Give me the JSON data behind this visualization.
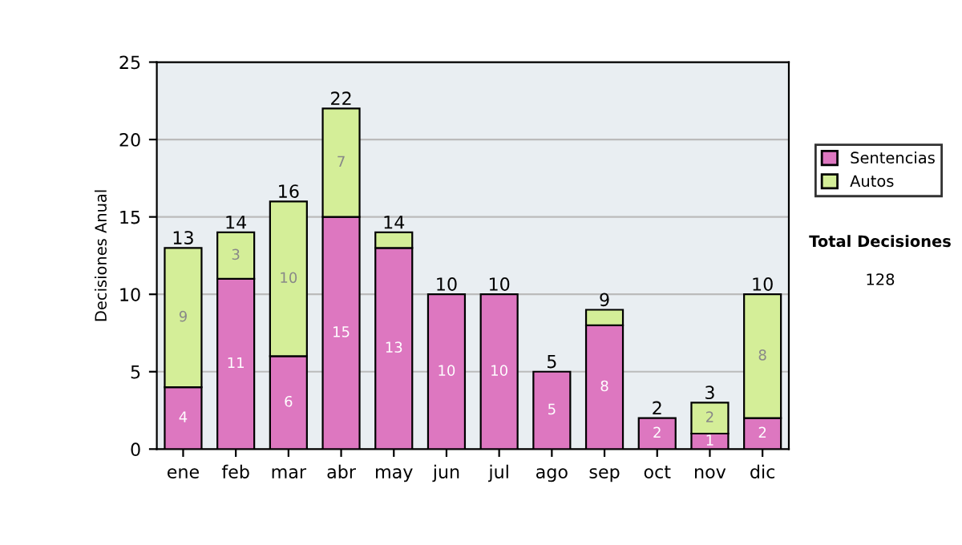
{
  "chart_data": {
    "type": "bar",
    "stacked": true,
    "ylabel": "Decisiones Anual",
    "categories": [
      "ene",
      "feb",
      "mar",
      "abr",
      "may",
      "jun",
      "jul",
      "ago",
      "sep",
      "oct",
      "nov",
      "dic"
    ],
    "series": [
      {
        "name": "Sentencias",
        "color": "#dd77c0",
        "values": [
          4,
          11,
          6,
          15,
          13,
          10,
          10,
          5,
          8,
          2,
          1,
          2
        ],
        "value_labels": [
          "4",
          "11",
          "6",
          "15",
          "13",
          "10",
          "10",
          "5",
          "8",
          "2",
          "1",
          "2"
        ]
      },
      {
        "name": "Autos",
        "color": "#d4ee98",
        "values": [
          9,
          3,
          10,
          7,
          1,
          0,
          0,
          0,
          1,
          0,
          2,
          8
        ],
        "value_labels": [
          "9",
          "3",
          "10",
          "7",
          null,
          null,
          null,
          null,
          null,
          null,
          "2",
          "8"
        ]
      }
    ],
    "totals": [
      "13",
      "14",
      "16",
      "22",
      "14",
      "10",
      "10",
      "5",
      "9",
      "2",
      "3",
      "10"
    ],
    "ylim": [
      0,
      25
    ],
    "yticks": [
      0,
      5,
      10,
      15,
      20,
      25
    ],
    "grid": "y",
    "legend": "right",
    "annotations": [
      "Total Decisiones",
      "128"
    ]
  }
}
